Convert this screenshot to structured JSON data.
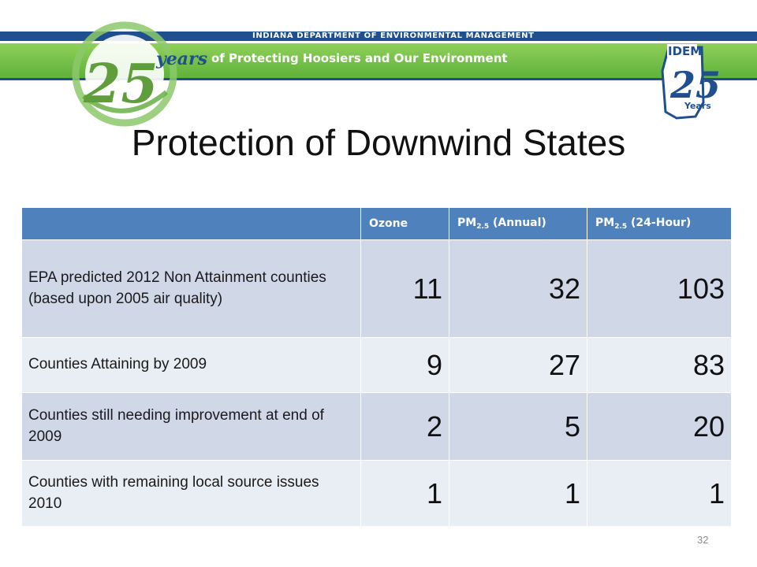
{
  "header": {
    "agency": "INDIANA DEPARTMENT OF ENVIRONMENTAL MANAGEMENT",
    "slogan": "of Protecting Hoosiers and Our Environment",
    "logo_25": {
      "number": "25",
      "word": "years"
    },
    "idem_logo": {
      "name": "IDEM",
      "number": "25",
      "word": "Years"
    }
  },
  "slide": {
    "title": "Protection of Downwind States",
    "page_number": "32"
  },
  "table": {
    "columns": [
      {
        "label": "Ozone"
      },
      {
        "prefix": "PM",
        "sub": "2.5",
        "suffix": " (Annual)"
      },
      {
        "prefix": "PM",
        "sub": "2.5",
        "suffix": " (24-Hour)"
      }
    ],
    "rows": [
      {
        "label": "EPA predicted 2012 Non Attainment  counties (based upon 2005 air quality)",
        "values": [
          "11",
          "32",
          "103"
        ]
      },
      {
        "label": "Counties Attaining by 2009",
        "values": [
          "9",
          "27",
          "83"
        ]
      },
      {
        "label": "Counties still needing improvement at end of 2009",
        "values": [
          "2",
          "5",
          "20"
        ]
      },
      {
        "label": "Counties with remaining local source issues 2010",
        "values": [
          "1",
          "1",
          "1"
        ]
      }
    ]
  },
  "colors": {
    "header_row": "#4f81bd",
    "row_dark": "#d0d8e8",
    "row_light": "#e9edf4",
    "banner_green": "#6cbf45",
    "banner_blue": "#1f4f8f"
  }
}
